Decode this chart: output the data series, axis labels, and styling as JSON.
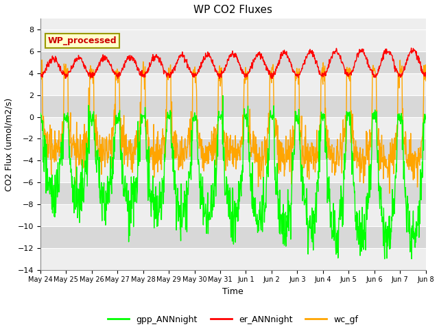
{
  "title": "WP CO2 Fluxes",
  "xlabel": "Time",
  "ylabel": "CO2 Flux (umol/m2/s)",
  "ylim": [
    -14,
    9
  ],
  "yticks": [
    -14,
    -12,
    -10,
    -8,
    -6,
    -4,
    -2,
    0,
    2,
    4,
    6,
    8
  ],
  "annotation_text": "WP_processed",
  "annotation_color": "#CC0000",
  "annotation_bg": "#FFFFCC",
  "annotation_border": "#999900",
  "gpp_color": "#00FF00",
  "er_color": "#FF0000",
  "wc_color": "#FFA500",
  "legend_labels": [
    "gpp_ANNnight",
    "er_ANNnight",
    "wc_gf"
  ],
  "bg_band_color": "#D8D8D8",
  "fig_bg": "#FFFFFF",
  "axes_bg": "#EEEEEE",
  "n_days": 16,
  "pts_per_day": 80,
  "line_width": 1.0,
  "xtick_labels": [
    "May 24",
    "May 25",
    "May 26",
    "May 27",
    "May 28",
    "May 29",
    "May 30",
    "May 31",
    "Jun 1",
    "Jun 2",
    "Jun 3",
    "Jun 4",
    "Jun 5",
    "Jun 6",
    "Jun 7",
    "Jun 8"
  ],
  "xtick_positions": [
    0,
    1,
    2,
    3,
    4,
    5,
    6,
    7,
    8,
    9,
    10,
    11,
    12,
    13,
    14,
    15
  ]
}
